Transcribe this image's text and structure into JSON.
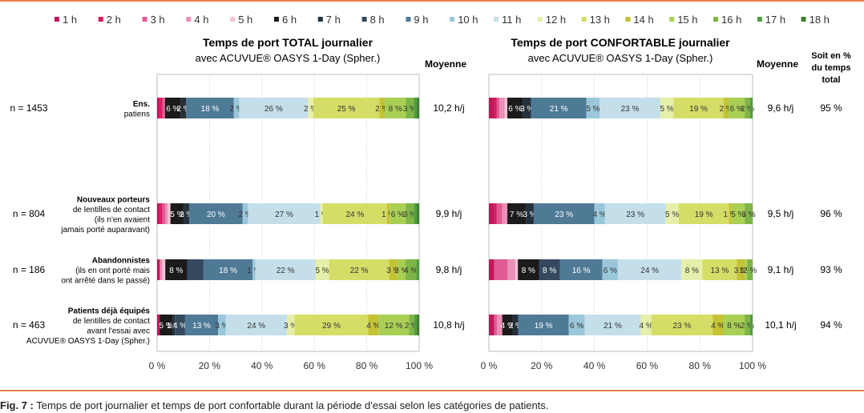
{
  "legend": [
    {
      "label": "1 h",
      "color": "#c2185b"
    },
    {
      "label": "2 h",
      "color": "#d81b60"
    },
    {
      "label": "3 h",
      "color": "#e05a94"
    },
    {
      "label": "4 h",
      "color": "#ea8fb6"
    },
    {
      "label": "5 h",
      "color": "#f4c2d6"
    },
    {
      "label": "6 h",
      "color": "#1b1b1b"
    },
    {
      "label": "7 h",
      "color": "#23313d"
    },
    {
      "label": "8 h",
      "color": "#34495e"
    },
    {
      "label": "9 h",
      "color": "#4f7a96"
    },
    {
      "label": "10 h",
      "color": "#9ac7da"
    },
    {
      "label": "11 h",
      "color": "#c4dfea"
    },
    {
      "label": "12 h",
      "color": "#e6efaa"
    },
    {
      "label": "13 h",
      "color": "#d4dd66"
    },
    {
      "label": "14 h",
      "color": "#c4c235"
    },
    {
      "label": "15 h",
      "color": "#a9cf55"
    },
    {
      "label": "16 h",
      "color": "#7fb447"
    },
    {
      "label": "17 h",
      "color": "#4f9e3c"
    },
    {
      "label": "18 h",
      "color": "#3f7f2e"
    }
  ],
  "headers": {
    "left_title_1": "Temps de port TOTAL journalier",
    "left_title_2": "avec ACUVUE® OASYS 1-Day (Spher.)",
    "right_title_1": "Temps de port CONFORTABLE journalier",
    "right_title_2": "avec ACUVUE® OASYS 1-Day (Spher.)",
    "moyenne_1": "Moyenne",
    "moyenne_2": "Moyenne",
    "soit_1": "Soit en %",
    "soit_2": "du temps",
    "soit_3": "total"
  },
  "rows": [
    {
      "n": "n = 1453",
      "label": [
        "Ens.",
        "patiens"
      ],
      "mean_total": "10,2 h/j",
      "mean_comfort": "9,6 h/j",
      "pct_total": "95 %"
    },
    {
      "n": "n = 804",
      "label": [
        "Nouveaux porteurs",
        "de lentilles de contact",
        "(ils n'en avaient",
        "jamais porté auparavant)"
      ],
      "mean_total": "9,9 h/j",
      "mean_comfort": "9,5 h/j",
      "pct_total": "96 %"
    },
    {
      "n": "n = 186",
      "label": [
        "Abandonnistes",
        "(ils en ont porté mais",
        "ont arrêté dans le passé)"
      ],
      "mean_total": "9,8 h/j",
      "mean_comfort": "9,1 h/j",
      "pct_total": "93 %"
    },
    {
      "n": "n = 463",
      "label": [
        "Patients déjà équipés",
        "de lentilles de contact",
        "avant l'essai avec",
        "ACUVUE® OASYS 1-Day (Spher.)"
      ],
      "mean_total": "10,8 h/j",
      "mean_comfort": "10,1 h/j",
      "pct_total": "94 %"
    }
  ],
  "chart_data": [
    {
      "type": "bar",
      "stacked": true,
      "orientation": "horizontal",
      "title": "Temps de port TOTAL journalier avec ACUVUE® OASYS 1-Day (Spher.)",
      "categories": [
        "Ens. patiens",
        "Nouveaux porteurs",
        "Abandonnistes",
        "Patients déjà équipés"
      ],
      "xlim": [
        0,
        100
      ],
      "xticks": [
        "0 %",
        "20 %",
        "40 %",
        "60 %",
        "80 %",
        "100 %"
      ],
      "series": [
        {
          "name": "1 h",
          "values": [
            1,
            1,
            1,
            1
          ]
        },
        {
          "name": "2 h",
          "values": [
            1,
            1,
            0,
            0
          ]
        },
        {
          "name": "3 h",
          "values": [
            1,
            1,
            0,
            0
          ]
        },
        {
          "name": "4 h",
          "values": [
            0,
            1,
            1,
            0
          ]
        },
        {
          "name": "5 h",
          "values": [
            0,
            1,
            1,
            0
          ]
        },
        {
          "name": "6 h",
          "values": [
            6,
            5,
            8,
            5
          ]
        },
        {
          "name": "7 h",
          "values": [
            2,
            2,
            0,
            1
          ]
        },
        {
          "name": "8 h",
          "values": [
            0,
            0,
            6,
            4
          ]
        },
        {
          "name": "9 h",
          "values": [
            18,
            20,
            18,
            13
          ]
        },
        {
          "name": "10 h",
          "values": [
            2,
            2,
            1,
            3
          ]
        },
        {
          "name": "11 h",
          "values": [
            26,
            27,
            22,
            24
          ]
        },
        {
          "name": "12 h",
          "values": [
            2,
            1,
            5,
            3
          ]
        },
        {
          "name": "13 h",
          "values": [
            25,
            24,
            22,
            29
          ]
        },
        {
          "name": "14 h",
          "values": [
            2,
            1,
            3,
            4
          ]
        },
        {
          "name": "15 h",
          "values": [
            8,
            6,
            3,
            12
          ]
        },
        {
          "name": "16 h",
          "values": [
            3,
            3,
            4,
            2
          ]
        },
        {
          "name": "17 h",
          "values": [
            1,
            1,
            1,
            1
          ]
        },
        {
          "name": "18 h",
          "values": [
            1,
            1,
            0,
            1
          ]
        }
      ],
      "labels": [
        [
          "",
          "",
          "",
          "",
          "",
          "6 %",
          "2 %",
          "",
          "18 %",
          "2 %",
          "26 %",
          "2 %",
          "25 %",
          "2 %",
          "8 %",
          "3 %",
          "",
          ""
        ],
        [
          "",
          "",
          "",
          "",
          "",
          "5 %",
          "2 %",
          "",
          "20 %",
          "2 %",
          "27 %",
          "1 %",
          "24 %",
          "1 %",
          "6 %",
          "3 %",
          "",
          ""
        ],
        [
          "",
          "",
          "",
          "",
          "",
          "8 %",
          "",
          "",
          "18 %",
          "1 %",
          "22 %",
          "5 %",
          "22 %",
          "3 %",
          "3 %",
          "4 %",
          "",
          ""
        ],
        [
          "",
          "",
          "",
          "",
          "",
          "5 %",
          "1 %",
          "4 %",
          "13 %",
          "3 %",
          "24 %",
          "3 %",
          "29 %",
          "4 %",
          "12 %",
          "2 %",
          "",
          ""
        ]
      ]
    },
    {
      "type": "bar",
      "stacked": true,
      "orientation": "horizontal",
      "title": "Temps de port CONFORTABLE journalier avec ACUVUE® OASYS 1-Day (Spher.)",
      "categories": [
        "Ens. patiens",
        "Nouveaux porteurs",
        "Abandonnistes",
        "Patients déjà équipés"
      ],
      "xlim": [
        0,
        100
      ],
      "xticks": [
        "0 %",
        "20 %",
        "40 %",
        "60 %",
        "80 %",
        "100 %"
      ],
      "series": [
        {
          "name": "1 h",
          "values": [
            2,
            2,
            2,
            2
          ]
        },
        {
          "name": "2 h",
          "values": [
            1,
            1,
            0,
            0
          ]
        },
        {
          "name": "3 h",
          "values": [
            1,
            2,
            5,
            1
          ]
        },
        {
          "name": "4 h",
          "values": [
            2,
            2,
            3,
            2
          ]
        },
        {
          "name": "5 h",
          "values": [
            1,
            0,
            1,
            0
          ]
        },
        {
          "name": "6 h",
          "values": [
            6,
            7,
            8,
            4
          ]
        },
        {
          "name": "7 h",
          "values": [
            3,
            3,
            0,
            2
          ]
        },
        {
          "name": "8 h",
          "values": [
            0,
            0,
            8,
            0
          ]
        },
        {
          "name": "9 h",
          "values": [
            21,
            23,
            16,
            19
          ]
        },
        {
          "name": "10 h",
          "values": [
            5,
            4,
            6,
            6
          ]
        },
        {
          "name": "11 h",
          "values": [
            23,
            23,
            24,
            21
          ]
        },
        {
          "name": "12 h",
          "values": [
            5,
            5,
            8,
            4
          ]
        },
        {
          "name": "13 h",
          "values": [
            19,
            19,
            13,
            23
          ]
        },
        {
          "name": "14 h",
          "values": [
            2,
            1,
            3,
            4
          ]
        },
        {
          "name": "15 h",
          "values": [
            6,
            5,
            1,
            8
          ]
        },
        {
          "name": "16 h",
          "values": [
            2,
            3,
            2,
            2
          ]
        },
        {
          "name": "17 h",
          "values": [
            1,
            0,
            0,
            1
          ]
        },
        {
          "name": "18 h",
          "values": [
            0,
            0,
            0,
            0
          ]
        }
      ],
      "labels": [
        [
          "",
          "",
          "",
          "",
          "",
          "6 %",
          "3 %",
          "",
          "21 %",
          "5 %",
          "23 %",
          "5 %",
          "19 %",
          "2 %",
          "6 %",
          "2 %",
          "",
          ""
        ],
        [
          "",
          "",
          "",
          "",
          "",
          "7 %",
          "3 %",
          "",
          "23 %",
          "4 %",
          "23 %",
          "5 %",
          "19 %",
          "1 %",
          "5 %",
          "3 %",
          "",
          ""
        ],
        [
          "",
          "",
          "",
          "",
          "",
          "8 %",
          "",
          "8 %",
          "16 %",
          "6 %",
          "24 %",
          "8 %",
          "13 %",
          "3 %",
          "1 %",
          "2 %",
          "",
          ""
        ],
        [
          "",
          "",
          "",
          "",
          "",
          "4 %",
          "2 %",
          "",
          "19 %",
          "6 %",
          "21 %",
          "4 %",
          "23 %",
          "4 %",
          "8 %",
          "2 %",
          "",
          ""
        ]
      ]
    }
  ],
  "caption": {
    "prefix": "Fig. 7 :",
    "text": " Temps de port journalier et temps de port confortable durant la période d'essai selon les catégories de patients."
  }
}
